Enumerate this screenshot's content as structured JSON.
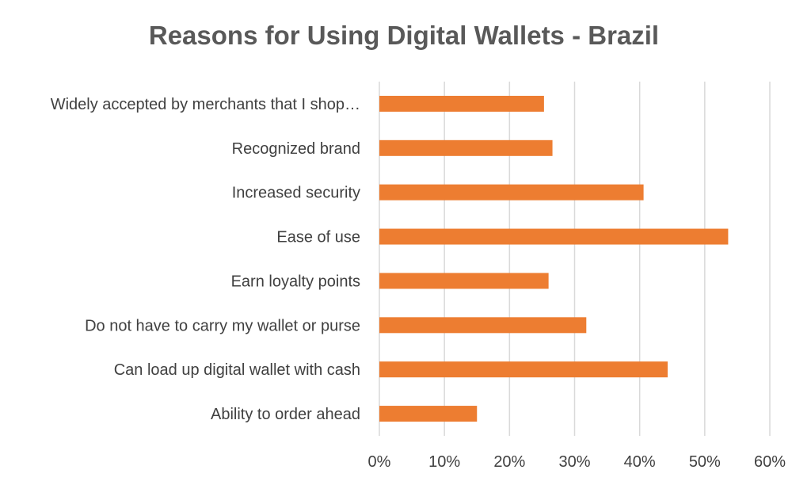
{
  "chart_data": {
    "type": "bar",
    "orientation": "horizontal",
    "title": "Reasons for Using Digital Wallets - Brazil",
    "xlabel": "",
    "ylabel": "",
    "categories": [
      "Widely accepted by merchants that I shop…",
      "Recognized brand",
      "Increased security",
      "Ease of use",
      "Earn loyalty points",
      "Do not have to carry my wallet or purse",
      "Can load up digital wallet with cash",
      "Ability to order ahead"
    ],
    "values": [
      25.3,
      26.6,
      40.6,
      53.6,
      26.0,
      31.8,
      44.3,
      15.0
    ],
    "value_unit": "%",
    "xlim": [
      0,
      60
    ],
    "ticks": [
      0,
      10,
      20,
      30,
      40,
      50,
      60
    ],
    "tick_labels": [
      "0%",
      "10%",
      "20%",
      "30%",
      "40%",
      "50%",
      "60%"
    ],
    "bar_color": "#ED7D31",
    "grid_color": "#D9D9D9",
    "grid": true,
    "legend": "none"
  }
}
